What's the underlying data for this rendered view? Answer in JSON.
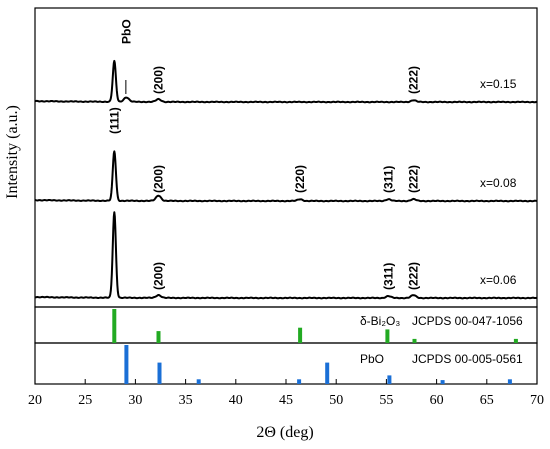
{
  "chart_data": {
    "type": "line",
    "xlabel": "2Θ (deg)",
    "ylabel": "Intensity (a.u.)",
    "xlim": [
      20,
      70
    ],
    "xticks": [
      20,
      25,
      30,
      35,
      40,
      45,
      50,
      55,
      60,
      65,
      70
    ],
    "series": [
      {
        "name": "x=0.15",
        "peaks": [
          {
            "x": 27.9,
            "height": 0.45
          },
          {
            "x": 29.1,
            "height": 0.05
          },
          {
            "x": 32.3,
            "height": 0.03
          },
          {
            "x": 57.7,
            "height": 0.02
          }
        ],
        "annotations": [
          {
            "text": "PbO",
            "x": 29.1
          },
          {
            "text": "(200)",
            "x": 32.3
          },
          {
            "text": "(222)",
            "x": 57.7
          }
        ]
      },
      {
        "name": "x=0.08",
        "peaks": [
          {
            "x": 27.9,
            "height": 0.55
          },
          {
            "x": 32.3,
            "height": 0.06
          },
          {
            "x": 46.4,
            "height": 0.02
          },
          {
            "x": 55.2,
            "height": 0.02
          },
          {
            "x": 57.7,
            "height": 0.02
          }
        ],
        "annotations": [
          {
            "text": "(111)",
            "x": 27.9
          },
          {
            "text": "(200)",
            "x": 32.3
          },
          {
            "text": "(220)",
            "x": 46.4
          },
          {
            "text": "(311)",
            "x": 55.2
          },
          {
            "text": "(222)",
            "x": 57.7
          }
        ]
      },
      {
        "name": "x=0.06",
        "peaks": [
          {
            "x": 27.9,
            "height": 0.9
          },
          {
            "x": 32.3,
            "height": 0.03
          },
          {
            "x": 55.2,
            "height": 0.02
          },
          {
            "x": 57.7,
            "height": 0.03
          }
        ],
        "annotations": [
          {
            "text": "(200)",
            "x": 32.3
          },
          {
            "text": "(311)",
            "x": 55.2
          },
          {
            "text": "(222)",
            "x": 57.7
          }
        ]
      }
    ],
    "references": [
      {
        "name": "δ-Bi₂O₃",
        "card": "JCPDS 00-047-1056",
        "color": "#22aa22",
        "lines": [
          {
            "x": 27.9,
            "intensity": 100
          },
          {
            "x": 32.3,
            "intensity": 35
          },
          {
            "x": 46.4,
            "intensity": 45
          },
          {
            "x": 55.1,
            "intensity": 40
          },
          {
            "x": 57.8,
            "intensity": 12
          },
          {
            "x": 67.9,
            "intensity": 12
          }
        ]
      },
      {
        "name": "PbO",
        "card": "JCPDS 00-005-0561",
        "color": "#1a6fd6",
        "lines": [
          {
            "x": 29.1,
            "intensity": 100
          },
          {
            "x": 32.4,
            "intensity": 55
          },
          {
            "x": 36.3,
            "intensity": 12
          },
          {
            "x": 46.3,
            "intensity": 12
          },
          {
            "x": 49.1,
            "intensity": 55
          },
          {
            "x": 55.3,
            "intensity": 22
          },
          {
            "x": 60.6,
            "intensity": 10
          },
          {
            "x": 67.3,
            "intensity": 12
          }
        ]
      }
    ]
  }
}
